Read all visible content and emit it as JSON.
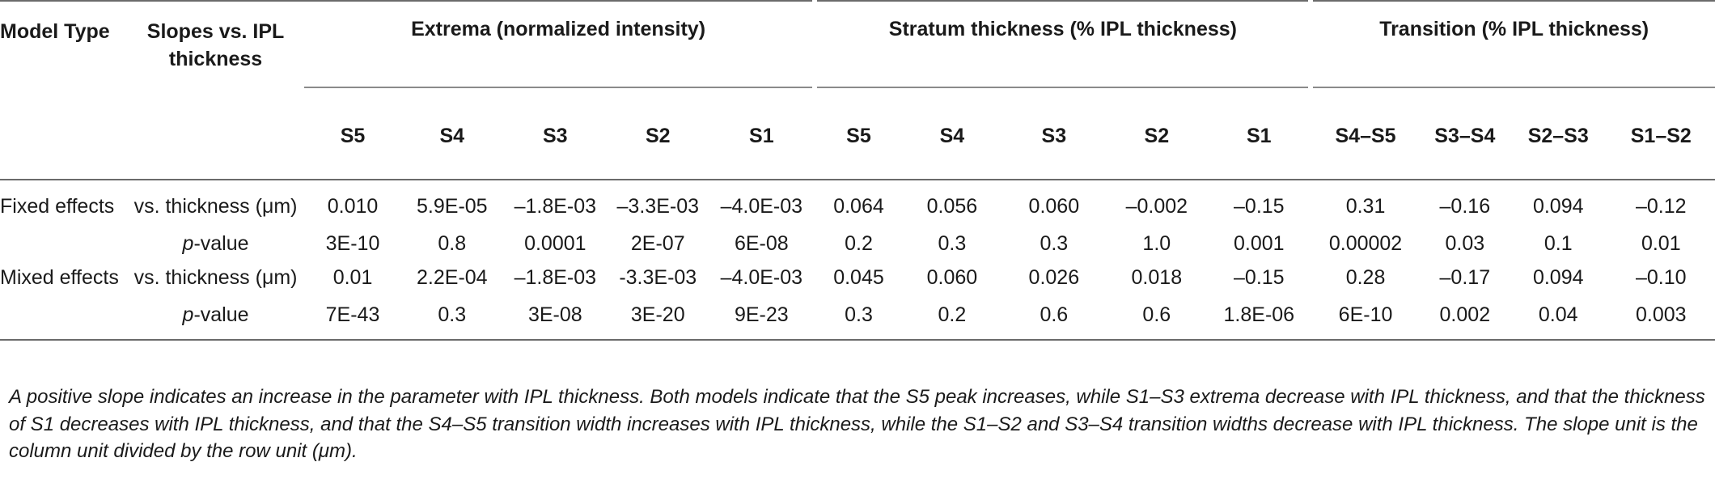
{
  "header": {
    "model_type": "Model Type",
    "slopes": "Slopes vs. IPL thickness",
    "groups": [
      {
        "label": "Extrema (normalized intensity)",
        "cols": [
          "S5",
          "S4",
          "S3",
          "S2",
          "S1"
        ]
      },
      {
        "label": "Stratum thickness (% IPL thickness)",
        "cols": [
          "S5",
          "S4",
          "S3",
          "S2",
          "S1"
        ]
      },
      {
        "label": "Transition (% IPL thickness)",
        "cols": [
          "S4–S5",
          "S3–S4",
          "S2–S3",
          "S1–S2"
        ]
      }
    ]
  },
  "rows": [
    {
      "model": "Fixed effects",
      "label": "vs. thickness (μm)",
      "values": [
        "0.010",
        "5.9E-05",
        "–1.8E-03",
        "–3.3E-03",
        "–4.0E-03",
        "0.064",
        "0.056",
        "0.060",
        "–0.002",
        "–0.15",
        "0.31",
        "–0.16",
        "0.094",
        "–0.12"
      ]
    },
    {
      "model": "",
      "label_italic": "p",
      "label_rest": "-value",
      "values": [
        "3E-10",
        "0.8",
        "0.0001",
        "2E-07",
        "6E-08",
        "0.2",
        "0.3",
        "0.3",
        "1.0",
        "0.001",
        "0.00002",
        "0.03",
        "0.1",
        "0.01"
      ]
    },
    {
      "model": "Mixed effects",
      "label": "vs. thickness (μm)",
      "values": [
        "0.01",
        "2.2E-04",
        "–1.8E-03",
        "-3.3E-03",
        "–4.0E-03",
        "0.045",
        "0.060",
        "0.026",
        "0.018",
        "–0.15",
        "0.28",
        "–0.17",
        "0.094",
        "–0.10"
      ]
    },
    {
      "model": "",
      "label_italic": "p",
      "label_rest": "-value",
      "values": [
        "7E-43",
        "0.3",
        "3E-08",
        "3E-20",
        "9E-23",
        "0.3",
        "0.2",
        "0.6",
        "0.6",
        "1.8E-06",
        "6E-10",
        "0.002",
        "0.04",
        "0.003"
      ]
    }
  ],
  "caption": "A positive slope indicates an increase in the parameter with IPL thickness. Both models indicate that the S5 peak increases, while S1–S3 extrema decrease with IPL thickness, and that the thickness of S1 decreases with IPL thickness, and that the S4–S5 transition width increases with IPL thickness, while the S1–S2 and S3–S4 transition widths decrease with IPL thickness. The slope unit is the column unit divided by the row unit (μm)."
}
